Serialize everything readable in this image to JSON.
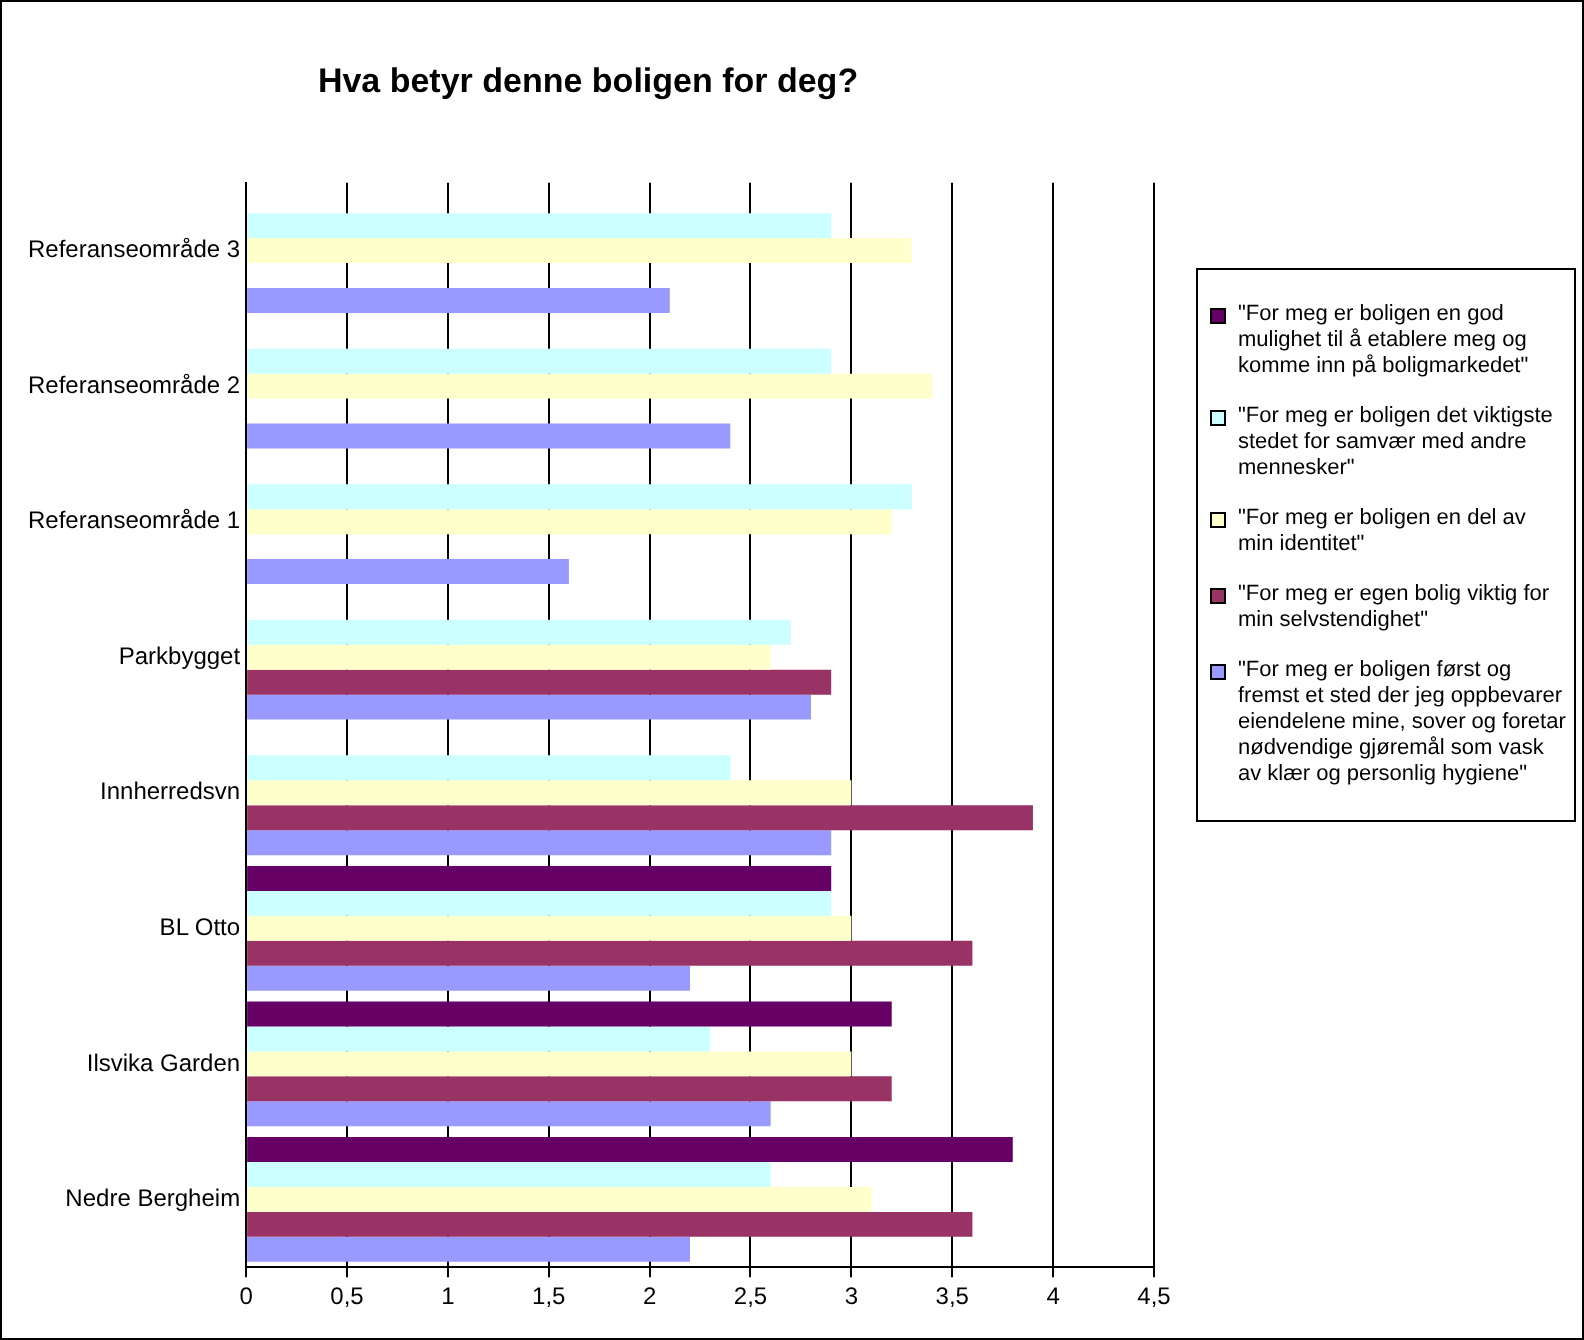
{
  "chart_data": {
    "type": "bar",
    "orientation": "horizontal",
    "title": "Hva betyr denne boligen for deg?",
    "categories": [
      "Referanseområde 3",
      "Referanseområde 2",
      "Referanseområde 1",
      "Parkbygget",
      "Innherredsvn",
      "BL Otto",
      "Ilsvika Garden",
      "Nedre Bergheim"
    ],
    "series": [
      {
        "name": "\"For meg er boligen en god mulighet til å etablere meg og komme inn på boligmarkedet\"",
        "color": "#660066",
        "values": [
          null,
          null,
          null,
          null,
          null,
          2.9,
          3.2,
          3.8
        ]
      },
      {
        "name": "\"For meg er boligen det viktigste stedet for samvær med andre mennesker\"",
        "color": "#ccffff",
        "values": [
          2.9,
          2.9,
          3.3,
          2.7,
          2.4,
          2.9,
          2.3,
          2.6
        ]
      },
      {
        "name": "\"For meg er boligen en del av min identitet\"",
        "color": "#ffffcc",
        "values": [
          3.3,
          3.4,
          3.2,
          2.6,
          3.0,
          3.0,
          3.0,
          3.1
        ]
      },
      {
        "name": "\"For meg er egen bolig viktig for min selvstendighet\"",
        "color": "#993366",
        "values": [
          null,
          null,
          null,
          2.9,
          3.9,
          3.6,
          3.2,
          3.6
        ]
      },
      {
        "name": "\"For meg er boligen først og fremst et sted der jeg oppbevarer eiendelene mine, sover og foretar nødvendige gjøremål som vask av klær og personlig hygiene\"",
        "color": "#9999ff",
        "values": [
          2.1,
          2.4,
          1.6,
          2.8,
          2.9,
          2.2,
          2.6,
          2.2
        ]
      }
    ],
    "xlim": [
      0,
      4.5
    ],
    "xticks": [
      0,
      {
        "value": 0.5,
        "label": "0,5"
      },
      1,
      {
        "value": 1.5,
        "label": "1,5"
      },
      2,
      {
        "value": 2.5,
        "label": "2,5"
      },
      3,
      {
        "value": 3.5,
        "label": "3,5"
      },
      4,
      {
        "value": 4.5,
        "label": "4,5"
      }
    ],
    "grid": "x",
    "legend": "right"
  }
}
